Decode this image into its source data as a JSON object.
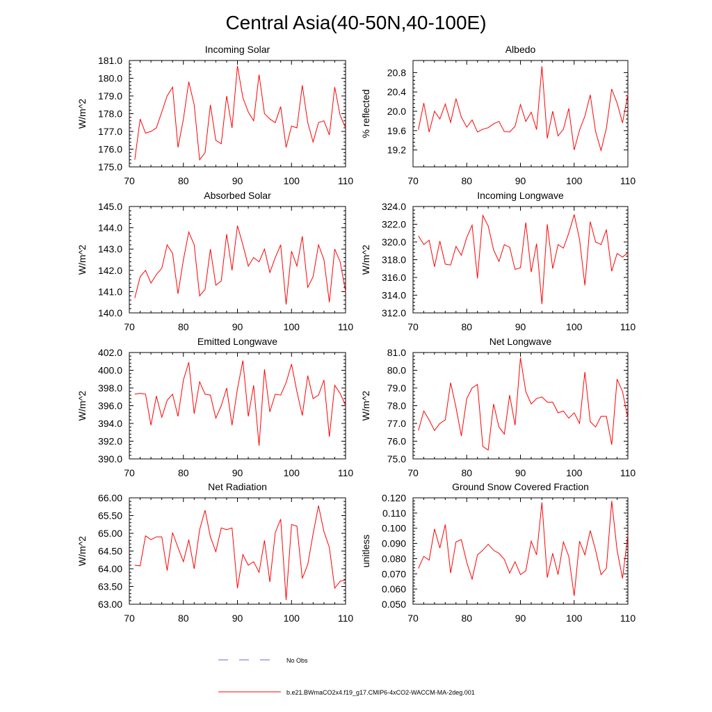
{
  "title": "Central Asia(40-50N,40-100E)",
  "colors": {
    "model": "#ff0000",
    "obs": "#6a6ad0",
    "axis": "#000000"
  },
  "legend": {
    "obs_label": "No Obs",
    "model_label": "b.e21.BWmaCO2x4.f19_g17.CMIP6-4xCO2-WACCM-MA-2deg.001"
  },
  "chart_data": [
    {
      "type": "line",
      "title": "Incoming Solar",
      "xlabel": "",
      "ylabel": "W/m^2",
      "xlim": [
        70,
        110
      ],
      "ylim": [
        175.0,
        181.0
      ],
      "xticks": [
        70,
        80,
        90,
        100,
        110
      ],
      "yticks": [
        175.0,
        176.0,
        177.0,
        178.0,
        179.0,
        180.0,
        181.0
      ],
      "ytick_labels": [
        "175.0",
        "176.0",
        "177.0",
        "178.0",
        "179.0",
        "180.0",
        "181.0"
      ],
      "series": [
        {
          "name": "b.e21.BWmaCO2x4.f19_g17.CMIP6-4xCO2-WACCM-MA-2deg.001",
          "x": [
            71,
            72,
            73,
            74,
            75,
            76,
            77,
            78,
            79,
            80,
            81,
            82,
            83,
            84,
            85,
            86,
            87,
            88,
            89,
            90,
            91,
            92,
            93,
            94,
            95,
            96,
            97,
            98,
            99,
            100,
            101,
            102,
            103,
            104,
            105,
            106,
            107,
            108,
            109,
            110
          ],
          "values": [
            175.4,
            177.7,
            176.9,
            177.0,
            177.2,
            178.1,
            179.0,
            179.5,
            176.1,
            177.7,
            179.8,
            178.5,
            175.4,
            175.8,
            178.5,
            176.5,
            176.3,
            179.0,
            177.2,
            180.7,
            178.9,
            178.1,
            177.6,
            180.2,
            178.0,
            177.7,
            177.5,
            178.4,
            176.1,
            177.3,
            177.2,
            179.6,
            177.5,
            176.4,
            177.5,
            177.6,
            176.8,
            179.5,
            177.9,
            177.2
          ]
        }
      ]
    },
    {
      "type": "line",
      "title": "Albedo",
      "xlabel": "",
      "ylabel": "% reflected",
      "xlim": [
        70,
        110
      ],
      "ylim": [
        18.85,
        21.05
      ],
      "xticks": [
        70,
        80,
        90,
        100,
        110
      ],
      "yticks": [
        19.2,
        19.6,
        20.0,
        20.4,
        20.8
      ],
      "ytick_labels": [
        "19.2",
        "19.6",
        "20.0",
        "20.4",
        "20.8"
      ],
      "series": [
        {
          "name": "b.e21.BWmaCO2x4.f19_g17.CMIP6-4xCO2-WACCM-MA-2deg.001",
          "x": [
            71,
            72,
            73,
            74,
            75,
            76,
            77,
            78,
            79,
            80,
            81,
            82,
            83,
            84,
            85,
            86,
            87,
            88,
            89,
            90,
            91,
            92,
            93,
            94,
            95,
            96,
            97,
            98,
            99,
            100,
            101,
            102,
            103,
            104,
            105,
            106,
            107,
            108,
            109,
            110
          ],
          "values": [
            19.62,
            20.17,
            19.57,
            20.0,
            19.84,
            20.15,
            19.77,
            20.26,
            19.88,
            19.67,
            19.82,
            19.57,
            19.63,
            19.66,
            19.74,
            19.79,
            19.58,
            19.57,
            19.69,
            20.14,
            19.79,
            19.98,
            19.62,
            20.93,
            19.44,
            20.0,
            19.49,
            19.63,
            20.06,
            19.2,
            19.61,
            19.9,
            20.34,
            19.58,
            19.19,
            19.65,
            20.46,
            20.17,
            19.76,
            20.35
          ]
        }
      ]
    },
    {
      "type": "line",
      "title": "Absorbed Solar",
      "xlabel": "",
      "ylabel": "W/m^2",
      "xlim": [
        70,
        110
      ],
      "ylim": [
        140.0,
        145.0
      ],
      "xticks": [
        70,
        80,
        90,
        100,
        110
      ],
      "yticks": [
        140.0,
        141.0,
        142.0,
        143.0,
        144.0,
        145.0
      ],
      "ytick_labels": [
        "140.0",
        "141.0",
        "142.0",
        "143.0",
        "144.0",
        "145.0"
      ],
      "series": [
        {
          "name": "b.e21.BWmaCO2x4.f19_g17.CMIP6-4xCO2-WACCM-MA-2deg.001",
          "x": [
            71,
            72,
            73,
            74,
            75,
            76,
            77,
            78,
            79,
            80,
            81,
            82,
            83,
            84,
            85,
            86,
            87,
            88,
            89,
            90,
            91,
            92,
            93,
            94,
            95,
            96,
            97,
            98,
            99,
            100,
            101,
            102,
            103,
            104,
            105,
            106,
            107,
            108,
            109,
            110
          ],
          "values": [
            140.7,
            141.7,
            142.0,
            141.4,
            141.8,
            142.1,
            143.2,
            142.8,
            140.9,
            142.5,
            143.8,
            143.2,
            140.8,
            141.1,
            143.0,
            141.3,
            141.5,
            143.7,
            142.0,
            144.1,
            143.2,
            142.2,
            142.6,
            142.4,
            143.0,
            141.9,
            142.6,
            143.2,
            140.4,
            142.9,
            142.2,
            143.6,
            141.2,
            141.7,
            143.2,
            142.5,
            140.5,
            143.0,
            142.4,
            141.0
          ]
        }
      ]
    },
    {
      "type": "line",
      "title": "Incoming Longwave",
      "xlabel": "",
      "ylabel": "W/m^2",
      "xlim": [
        70,
        110
      ],
      "ylim": [
        312.0,
        324.0
      ],
      "xticks": [
        70,
        80,
        90,
        100,
        110
      ],
      "yticks": [
        312.0,
        314.0,
        316.0,
        318.0,
        320.0,
        322.0,
        324.0
      ],
      "ytick_labels": [
        "312.0",
        "314.0",
        "316.0",
        "318.0",
        "320.0",
        "322.0",
        "324.0"
      ],
      "series": [
        {
          "name": "b.e21.BWmaCO2x4.f19_g17.CMIP6-4xCO2-WACCM-MA-2deg.001",
          "x": [
            71,
            72,
            73,
            74,
            75,
            76,
            77,
            78,
            79,
            80,
            81,
            82,
            83,
            84,
            85,
            86,
            87,
            88,
            89,
            90,
            91,
            92,
            93,
            94,
            95,
            96,
            97,
            98,
            99,
            100,
            101,
            102,
            103,
            104,
            105,
            106,
            107,
            108,
            109,
            110
          ],
          "values": [
            320.7,
            319.7,
            320.2,
            317.2,
            320.1,
            317.5,
            317.4,
            319.5,
            318.5,
            320.5,
            321.9,
            315.9,
            323.0,
            321.8,
            319.1,
            317.8,
            319.7,
            319.4,
            316.9,
            317.1,
            322.2,
            316.6,
            319.8,
            313.0,
            322.0,
            317.0,
            319.7,
            319.3,
            321.0,
            323.1,
            320.3,
            315.1,
            322.3,
            320.0,
            319.7,
            321.4,
            316.7,
            318.7,
            318.3,
            318.8
          ]
        }
      ]
    },
    {
      "type": "line",
      "title": "Emitted Longwave",
      "xlabel": "",
      "ylabel": "W/m^2",
      "xlim": [
        70,
        110
      ],
      "ylim": [
        390.0,
        402.0
      ],
      "xticks": [
        70,
        80,
        90,
        100,
        110
      ],
      "yticks": [
        390.0,
        392.0,
        394.0,
        396.0,
        398.0,
        400.0,
        402.0
      ],
      "ytick_labels": [
        "390.0",
        "392.0",
        "394.0",
        "396.0",
        "398.0",
        "400.0",
        "402.0"
      ],
      "series": [
        {
          "name": "b.e21.BWmaCO2x4.f19_g17.CMIP6-4xCO2-WACCM-MA-2deg.001",
          "x": [
            71,
            72,
            73,
            74,
            75,
            76,
            77,
            78,
            79,
            80,
            81,
            82,
            83,
            84,
            85,
            86,
            87,
            88,
            89,
            90,
            91,
            92,
            93,
            94,
            95,
            96,
            97,
            98,
            99,
            100,
            101,
            102,
            103,
            104,
            105,
            106,
            107,
            108,
            109,
            110
          ],
          "values": [
            397.3,
            397.4,
            397.3,
            393.8,
            397.1,
            394.7,
            396.6,
            397.3,
            394.8,
            398.9,
            400.9,
            395.1,
            398.7,
            397.3,
            397.2,
            394.6,
            396.0,
            398.0,
            393.8,
            397.9,
            401.1,
            394.8,
            398.3,
            391.5,
            400.1,
            395.3,
            397.3,
            397.2,
            398.6,
            400.7,
            397.6,
            394.9,
            399.4,
            396.8,
            397.2,
            398.9,
            392.5,
            398.3,
            397.4,
            396.0
          ]
        }
      ]
    },
    {
      "type": "line",
      "title": "Net Longwave",
      "xlabel": "",
      "ylabel": "W/m^2",
      "xlim": [
        70,
        110
      ],
      "ylim": [
        75.0,
        81.0
      ],
      "xticks": [
        70,
        80,
        90,
        100,
        110
      ],
      "yticks": [
        75.0,
        76.0,
        77.0,
        78.0,
        79.0,
        80.0,
        81.0
      ],
      "ytick_labels": [
        "75.0",
        "76.0",
        "77.0",
        "78.0",
        "79.0",
        "80.0",
        "81.0"
      ],
      "series": [
        {
          "name": "b.e21.BWmaCO2x4.f19_g17.CMIP6-4xCO2-WACCM-MA-2deg.001",
          "x": [
            71,
            72,
            73,
            74,
            75,
            76,
            77,
            78,
            79,
            80,
            81,
            82,
            83,
            84,
            85,
            86,
            87,
            88,
            89,
            90,
            91,
            92,
            93,
            94,
            95,
            96,
            97,
            98,
            99,
            100,
            101,
            102,
            103,
            104,
            105,
            106,
            107,
            108,
            109,
            110
          ],
          "values": [
            76.6,
            77.7,
            77.2,
            76.6,
            77.0,
            77.2,
            79.3,
            77.9,
            76.3,
            78.4,
            79.0,
            79.2,
            75.7,
            75.5,
            78.1,
            76.8,
            76.4,
            78.6,
            76.9,
            80.7,
            78.8,
            78.1,
            78.4,
            78.5,
            78.2,
            78.2,
            77.6,
            77.7,
            77.3,
            77.6,
            77.0,
            79.9,
            77.1,
            76.8,
            77.4,
            77.4,
            75.8,
            79.5,
            78.8,
            77.3
          ]
        }
      ]
    },
    {
      "type": "line",
      "title": "Net Radiation",
      "xlabel": "",
      "ylabel": "W/m^2",
      "xlim": [
        70,
        110
      ],
      "ylim": [
        63.0,
        66.0
      ],
      "xticks": [
        70,
        80,
        90,
        100,
        110
      ],
      "yticks": [
        63.0,
        63.5,
        64.0,
        64.5,
        65.0,
        65.5,
        66.0
      ],
      "ytick_labels": [
        "63.00",
        "63.50",
        "64.00",
        "64.50",
        "65.00",
        "65.50",
        "66.00"
      ],
      "series": [
        {
          "name": "b.e21.BWmaCO2x4.f19_g17.CMIP6-4xCO2-WACCM-MA-2deg.001",
          "x": [
            71,
            72,
            73,
            74,
            75,
            76,
            77,
            78,
            79,
            80,
            81,
            82,
            83,
            84,
            85,
            86,
            87,
            88,
            89,
            90,
            91,
            92,
            93,
            94,
            95,
            96,
            97,
            98,
            99,
            100,
            101,
            102,
            103,
            104,
            105,
            106,
            107,
            108,
            109,
            110
          ],
          "values": [
            64.1,
            64.08,
            64.93,
            64.82,
            64.9,
            64.9,
            63.95,
            65.02,
            64.6,
            64.2,
            64.82,
            64.0,
            65.1,
            65.65,
            64.9,
            64.48,
            65.15,
            65.1,
            65.15,
            63.45,
            64.4,
            64.1,
            64.2,
            63.9,
            64.8,
            63.63,
            65.02,
            65.4,
            63.12,
            65.25,
            65.2,
            63.73,
            64.12,
            64.98,
            65.78,
            65.05,
            64.6,
            63.45,
            63.65,
            63.68
          ]
        }
      ]
    },
    {
      "type": "line",
      "title": "Ground Snow Covered Fraction",
      "xlabel": "",
      "ylabel": "unitless",
      "xlim": [
        70,
        110
      ],
      "ylim": [
        0.05,
        0.12
      ],
      "xticks": [
        70,
        80,
        90,
        100,
        110
      ],
      "yticks": [
        0.05,
        0.06,
        0.07,
        0.08,
        0.09,
        0.1,
        0.11,
        0.12
      ],
      "ytick_labels": [
        "0.050",
        "0.060",
        "0.070",
        "0.080",
        "0.090",
        "0.100",
        "0.110",
        "0.120"
      ],
      "series": [
        {
          "name": "b.e21.BWmaCO2x4.f19_g17.CMIP6-4xCO2-WACCM-MA-2deg.001",
          "x": [
            71,
            72,
            73,
            74,
            75,
            76,
            77,
            78,
            79,
            80,
            81,
            82,
            83,
            84,
            85,
            86,
            87,
            88,
            89,
            90,
            91,
            92,
            93,
            94,
            95,
            96,
            97,
            98,
            99,
            100,
            101,
            102,
            103,
            104,
            105,
            106,
            107,
            108,
            109,
            110
          ],
          "values": [
            0.0735,
            0.0815,
            0.079,
            0.0995,
            0.087,
            0.1025,
            0.0705,
            0.091,
            0.0925,
            0.0775,
            0.0665,
            0.0825,
            0.0855,
            0.0895,
            0.0855,
            0.0835,
            0.0795,
            0.0705,
            0.078,
            0.0695,
            0.072,
            0.0915,
            0.0825,
            0.117,
            0.0675,
            0.0835,
            0.0695,
            0.091,
            0.0815,
            0.0555,
            0.0915,
            0.0825,
            0.0985,
            0.0855,
            0.0695,
            0.0735,
            0.118,
            0.0855,
            0.067,
            0.0955
          ]
        }
      ]
    }
  ]
}
